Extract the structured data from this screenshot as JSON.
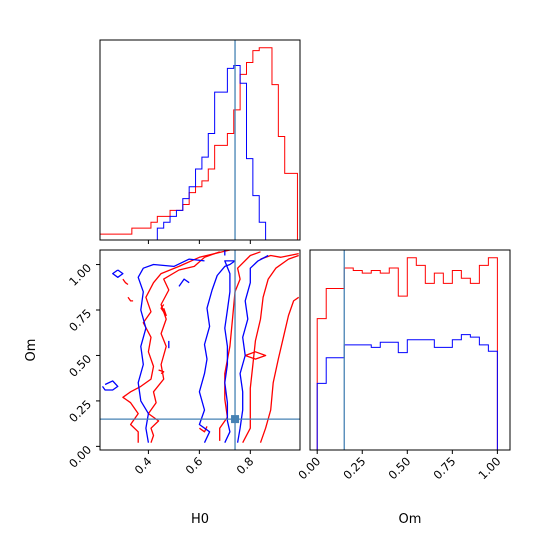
{
  "chart_data": {
    "type": "corner",
    "parameters": [
      "H0",
      "Om"
    ],
    "truth": {
      "H0": 0.74,
      "Om": 0.15
    },
    "truth_color": "#4682b4",
    "series": [
      {
        "color": "#ff0000"
      },
      {
        "color": "#0000ff"
      }
    ],
    "panels": [
      {
        "id": "hist-H0",
        "type": "histogram",
        "x_param": "H0",
        "xlim": [
          0.21,
          0.995
        ],
        "bin_edges": [
          0.21,
          0.235,
          0.26,
          0.285,
          0.31,
          0.335,
          0.36,
          0.385,
          0.41,
          0.435,
          0.46,
          0.485,
          0.51,
          0.535,
          0.56,
          0.585,
          0.61,
          0.635,
          0.66,
          0.685,
          0.71,
          0.735,
          0.76,
          0.785,
          0.81,
          0.835,
          0.86,
          0.885,
          0.91,
          0.935,
          0.96,
          0.985
        ],
        "series_counts": [
          [
            4,
            4,
            4,
            4,
            4,
            8,
            8,
            8,
            12,
            16,
            16,
            20,
            20,
            24,
            32,
            36,
            40,
            48,
            64,
            64,
            72,
            88,
            112,
            120,
            128,
            130,
            130,
            105,
            70,
            45,
            45
          ],
          [
            0,
            0,
            0,
            0,
            0,
            0,
            0,
            0,
            0,
            8,
            12,
            16,
            20,
            28,
            36,
            48,
            56,
            72,
            100,
            100,
            116,
            118,
            106,
            55,
            30,
            12,
            0,
            0,
            0,
            0,
            0
          ]
        ]
      },
      {
        "id": "contour-H0-Om",
        "type": "contour",
        "x_param": "H0",
        "y_param": "Om",
        "xlim": [
          0.21,
          0.995
        ],
        "ylim": [
          -0.02,
          1.08
        ],
        "x_ticks": [
          "0.4",
          "0.6",
          "0.8"
        ],
        "x_tick_values": [
          0.4,
          0.6,
          0.8
        ],
        "y_ticks": [
          "0.00",
          "0.25",
          "0.50",
          "0.75",
          "1.00"
        ],
        "y_tick_values": [
          0.0,
          0.25,
          0.5,
          0.75,
          1.0
        ],
        "xlabel": "H0",
        "ylabel": "Om",
        "contours": [
          {
            "series": 0,
            "points": [
              [
                0.36,
                0.02
              ],
              [
                0.36,
                0.08
              ],
              [
                0.33,
                0.12
              ],
              [
                0.36,
                0.18
              ],
              [
                0.33,
                0.24
              ],
              [
                0.3,
                0.27
              ],
              [
                0.33,
                0.3
              ],
              [
                0.37,
                0.33
              ],
              [
                0.41,
                0.37
              ],
              [
                0.42,
                0.44
              ],
              [
                0.4,
                0.52
              ],
              [
                0.41,
                0.6
              ],
              [
                0.38,
                0.68
              ],
              [
                0.41,
                0.74
              ],
              [
                0.39,
                0.82
              ],
              [
                0.42,
                0.9
              ],
              [
                0.45,
                0.95
              ],
              [
                0.52,
                0.99
              ],
              [
                0.6,
                1.04
              ],
              [
                0.66,
                1.06
              ],
              [
                0.72,
                1.08
              ]
            ]
          },
          {
            "series": 0,
            "points": [
              [
                0.41,
                0.02
              ],
              [
                0.42,
                0.06
              ],
              [
                0.41,
                0.1
              ],
              [
                0.44,
                0.14
              ],
              [
                0.4,
                0.18
              ],
              [
                0.43,
                0.24
              ],
              [
                0.42,
                0.3
              ],
              [
                0.46,
                0.37
              ],
              [
                0.45,
                0.45
              ],
              [
                0.47,
                0.55
              ],
              [
                0.45,
                0.62
              ],
              [
                0.47,
                0.7
              ],
              [
                0.45,
                0.78
              ],
              [
                0.48,
                0.86
              ],
              [
                0.46,
                0.92
              ],
              [
                0.52,
                0.97
              ],
              [
                0.58,
                0.99
              ],
              [
                0.62,
                1.04
              ],
              [
                0.68,
                1.07
              ]
            ]
          },
          {
            "series": 0,
            "points": [
              [
                0.68,
                0.03
              ],
              [
                0.68,
                0.1
              ],
              [
                0.71,
                0.16
              ],
              [
                0.7,
                0.26
              ],
              [
                0.7,
                0.4
              ],
              [
                0.72,
                0.55
              ],
              [
                0.73,
                0.7
              ],
              [
                0.74,
                0.85
              ],
              [
                0.76,
                0.92
              ],
              [
                0.75,
                0.98
              ],
              [
                0.8,
                1.05
              ],
              [
                0.84,
                1.07
              ]
            ]
          },
          {
            "series": 0,
            "points": [
              [
                0.77,
                0.02
              ],
              [
                0.8,
                0.1
              ],
              [
                0.8,
                0.2
              ],
              [
                0.8,
                0.32
              ],
              [
                0.81,
                0.45
              ],
              [
                0.82,
                0.58
              ],
              [
                0.84,
                0.7
              ],
              [
                0.85,
                0.82
              ],
              [
                0.87,
                0.92
              ],
              [
                0.9,
                0.98
              ],
              [
                0.95,
                1.03
              ],
              [
                0.99,
                1.05
              ]
            ]
          },
          {
            "series": 0,
            "points": [
              [
                0.84,
                0.02
              ],
              [
                0.86,
                0.1
              ],
              [
                0.88,
                0.2
              ],
              [
                0.89,
                0.35
              ],
              [
                0.91,
                0.48
              ],
              [
                0.93,
                0.6
              ],
              [
                0.95,
                0.72
              ],
              [
                0.97,
                0.8
              ],
              [
                0.99,
                0.82
              ]
            ]
          },
          {
            "series": 0,
            "points": [
              [
                0.78,
                0.5
              ],
              [
                0.82,
                0.48
              ],
              [
                0.86,
                0.5
              ],
              [
                0.82,
                0.52
              ],
              [
                0.78,
                0.5
              ]
            ]
          },
          {
            "series": 0,
            "points": [
              [
                0.46,
                0.78
              ],
              [
                0.45,
                0.76
              ],
              [
                0.47,
                0.72
              ],
              [
                0.46,
                0.76
              ]
            ]
          },
          {
            "series": 0,
            "points": [
              [
                0.3,
                0.92
              ],
              [
                0.31,
                0.9
              ],
              [
                0.32,
                0.89
              ]
            ]
          },
          {
            "series": 0,
            "points": [
              [
                0.32,
                0.82
              ],
              [
                0.33,
                0.8
              ],
              [
                0.34,
                0.8
              ]
            ]
          },
          {
            "series": 0,
            "points": [
              [
                0.44,
                0.42
              ],
              [
                0.46,
                0.41
              ],
              [
                0.45,
                0.4
              ]
            ]
          },
          {
            "series": 0,
            "points": [
              [
                0.6,
                0.1
              ],
              [
                0.62,
                0.08
              ],
              [
                0.63,
                0.11
              ]
            ]
          },
          {
            "series": 0,
            "points": [
              [
                0.84,
                1.03
              ],
              [
                0.88,
                1.05
              ],
              [
                0.92,
                1.04
              ],
              [
                0.99,
                1.06
              ]
            ]
          },
          {
            "series": 1,
            "points": [
              [
                0.23,
                0.34
              ],
              [
                0.26,
                0.36
              ],
              [
                0.28,
                0.33
              ],
              [
                0.26,
                0.31
              ],
              [
                0.23,
                0.31
              ],
              [
                0.22,
                0.33
              ]
            ]
          },
          {
            "series": 1,
            "points": [
              [
                0.4,
                0.02
              ],
              [
                0.39,
                0.1
              ],
              [
                0.4,
                0.18
              ],
              [
                0.37,
                0.25
              ],
              [
                0.36,
                0.35
              ],
              [
                0.38,
                0.45
              ],
              [
                0.37,
                0.55
              ],
              [
                0.39,
                0.65
              ],
              [
                0.37,
                0.75
              ],
              [
                0.38,
                0.85
              ],
              [
                0.36,
                0.93
              ],
              [
                0.38,
                0.98
              ],
              [
                0.42,
                1.0
              ],
              [
                0.5,
                0.99
              ],
              [
                0.56,
                1.03
              ],
              [
                0.62,
                1.02
              ]
            ]
          },
          {
            "series": 1,
            "points": [
              [
                0.52,
                0.88
              ],
              [
                0.54,
                0.92
              ],
              [
                0.56,
                0.9
              ]
            ]
          },
          {
            "series": 1,
            "points": [
              [
                0.7,
                1.08
              ],
              [
                0.7,
                1.05
              ]
            ]
          },
          {
            "series": 1,
            "points": [
              [
                0.62,
                0.02
              ],
              [
                0.64,
                0.08
              ],
              [
                0.6,
                0.12
              ],
              [
                0.62,
                0.2
              ],
              [
                0.6,
                0.3
              ],
              [
                0.62,
                0.4
              ],
              [
                0.63,
                0.48
              ],
              [
                0.62,
                0.56
              ],
              [
                0.64,
                0.66
              ],
              [
                0.63,
                0.76
              ],
              [
                0.65,
                0.86
              ],
              [
                0.67,
                0.94
              ],
              [
                0.7,
                0.99
              ],
              [
                0.72,
                1.0
              ],
              [
                0.74,
                1.02
              ]
            ]
          },
          {
            "series": 1,
            "points": [
              [
                0.7,
                0.02
              ],
              [
                0.72,
                0.08
              ],
              [
                0.71,
                0.14
              ],
              [
                0.71,
                0.24
              ],
              [
                0.7,
                0.35
              ],
              [
                0.71,
                0.45
              ],
              [
                0.71,
                0.55
              ],
              [
                0.7,
                0.65
              ],
              [
                0.71,
                0.75
              ],
              [
                0.72,
                0.85
              ],
              [
                0.72,
                0.95
              ],
              [
                0.7,
                1.02
              ],
              [
                0.74,
                1.02
              ]
            ]
          },
          {
            "series": 1,
            "points": [
              [
                0.75,
                0.02
              ],
              [
                0.76,
                0.1
              ],
              [
                0.77,
                0.2
              ],
              [
                0.77,
                0.3
              ],
              [
                0.76,
                0.4
              ],
              [
                0.78,
                0.5
              ],
              [
                0.77,
                0.6
              ],
              [
                0.79,
                0.7
              ],
              [
                0.78,
                0.8
              ],
              [
                0.8,
                0.9
              ],
              [
                0.8,
                0.98
              ],
              [
                0.83,
                1.02
              ],
              [
                0.87,
                1.05
              ]
            ]
          },
          {
            "series": 1,
            "points": [
              [
                0.28,
                0.97
              ],
              [
                0.3,
                0.95
              ],
              [
                0.28,
                0.93
              ],
              [
                0.26,
                0.95
              ],
              [
                0.28,
                0.97
              ]
            ]
          },
          {
            "series": 1,
            "points": [
              [
                0.48,
                0.54
              ],
              [
                0.48,
                0.58
              ]
            ]
          }
        ]
      },
      {
        "id": "hist-Om",
        "type": "histogram",
        "x_param": "Om",
        "xlim": [
          -0.04,
          1.07
        ],
        "x_ticks": [
          "0.00",
          "0.25",
          "0.50",
          "0.75",
          "1.00"
        ],
        "x_tick_values": [
          0.0,
          0.25,
          0.5,
          0.75,
          1.0
        ],
        "xlabel": "Om",
        "bin_edges": [
          0.0,
          0.05,
          0.1,
          0.15,
          0.2,
          0.25,
          0.3,
          0.35,
          0.4,
          0.45,
          0.5,
          0.55,
          0.6,
          0.65,
          0.7,
          0.75,
          0.8,
          0.85,
          0.9,
          0.95,
          1.0
        ],
        "series_counts": [
          [
            2050,
            2520,
            2520,
            2840,
            2800,
            2760,
            2800,
            2760,
            2840,
            2400,
            3000,
            2880,
            2600,
            2760,
            2600,
            2800,
            2680,
            2600,
            2880,
            3000
          ],
          [
            1040,
            1440,
            1440,
            1640,
            1640,
            1640,
            1600,
            1680,
            1680,
            1520,
            1720,
            1720,
            1720,
            1600,
            1600,
            1720,
            1800,
            1760,
            1640,
            1540
          ]
        ]
      }
    ]
  }
}
